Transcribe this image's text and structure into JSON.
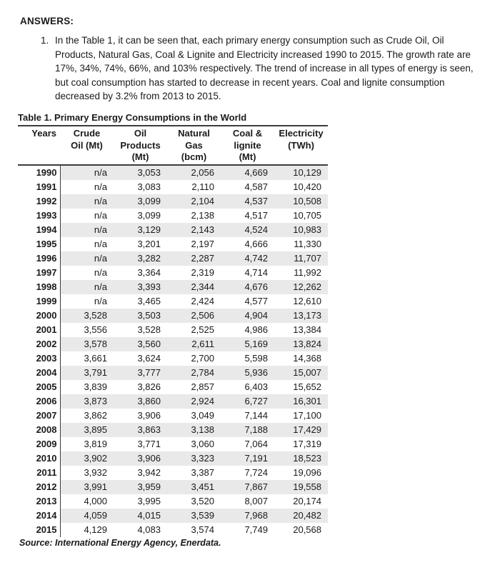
{
  "document": {
    "answers_heading": "ANSWERS:",
    "answer": {
      "number": "1.",
      "lines": [
        "In the Table 1, it can be seen that, each primary energy consumption such as Crude Oil, Oil",
        "Products, Natural Gas, Coal & Lignite and Electricity increased 1990 to 2015. The growth rate are",
        "17%, 34%, 74%, 66%, and 103% respectively. The trend of increase in all types of energy is seen,",
        "but coal consumption has started to decrease in recent years. Coal and lignite consumption",
        "decreased by 3.2% from 2013 to 2015."
      ]
    },
    "table_title": "Table 1. Primary Energy Consumptions in the World",
    "source_note": "Source: International Energy Agency, Enerdata."
  },
  "table": {
    "columns": [
      {
        "id": "years",
        "header_lines": [
          "Years"
        ]
      },
      {
        "id": "crude-oil",
        "header_lines": [
          "Crude",
          "Oil (Mt)"
        ]
      },
      {
        "id": "oil-products",
        "header_lines": [
          "Oil",
          "Products",
          "(Mt)"
        ]
      },
      {
        "id": "natural-gas",
        "header_lines": [
          "Natural",
          "Gas",
          "(bcm)"
        ]
      },
      {
        "id": "coal-lignite",
        "header_lines": [
          "Coal &",
          "lignite",
          "(Mt)"
        ]
      },
      {
        "id": "electricity",
        "header_lines": [
          "Electricity",
          "(TWh)"
        ]
      }
    ],
    "rows": [
      {
        "year": "1990",
        "values": [
          "n/a",
          "3,053",
          "2,056",
          "4,669",
          "10,129"
        ]
      },
      {
        "year": "1991",
        "values": [
          "n/a",
          "3,083",
          "2,110",
          "4,587",
          "10,420"
        ]
      },
      {
        "year": "1992",
        "values": [
          "n/a",
          "3,099",
          "2,104",
          "4,537",
          "10,508"
        ]
      },
      {
        "year": "1993",
        "values": [
          "n/a",
          "3,099",
          "2,138",
          "4,517",
          "10,705"
        ]
      },
      {
        "year": "1994",
        "values": [
          "n/a",
          "3,129",
          "2,143",
          "4,524",
          "10,983"
        ]
      },
      {
        "year": "1995",
        "values": [
          "n/a",
          "3,201",
          "2,197",
          "4,666",
          "11,330"
        ]
      },
      {
        "year": "1996",
        "values": [
          "n/a",
          "3,282",
          "2,287",
          "4,742",
          "11,707"
        ]
      },
      {
        "year": "1997",
        "values": [
          "n/a",
          "3,364",
          "2,319",
          "4,714",
          "11,992"
        ]
      },
      {
        "year": "1998",
        "values": [
          "n/a",
          "3,393",
          "2,344",
          "4,676",
          "12,262"
        ]
      },
      {
        "year": "1999",
        "values": [
          "n/a",
          "3,465",
          "2,424",
          "4,577",
          "12,610"
        ]
      },
      {
        "year": "2000",
        "values": [
          "3,528",
          "3,503",
          "2,506",
          "4,904",
          "13,173"
        ]
      },
      {
        "year": "2001",
        "values": [
          "3,556",
          "3,528",
          "2,525",
          "4,986",
          "13,384"
        ]
      },
      {
        "year": "2002",
        "values": [
          "3,578",
          "3,560",
          "2,611",
          "5,169",
          "13,824"
        ]
      },
      {
        "year": "2003",
        "values": [
          "3,661",
          "3,624",
          "2,700",
          "5,598",
          "14,368"
        ]
      },
      {
        "year": "2004",
        "values": [
          "3,791",
          "3,777",
          "2,784",
          "5,936",
          "15,007"
        ]
      },
      {
        "year": "2005",
        "values": [
          "3,839",
          "3,826",
          "2,857",
          "6,403",
          "15,652"
        ]
      },
      {
        "year": "2006",
        "values": [
          "3,873",
          "3,860",
          "2,924",
          "6,727",
          "16,301"
        ]
      },
      {
        "year": "2007",
        "values": [
          "3,862",
          "3,906",
          "3,049",
          "7,144",
          "17,100"
        ]
      },
      {
        "year": "2008",
        "values": [
          "3,895",
          "3,863",
          "3,138",
          "7,188",
          "17,429"
        ]
      },
      {
        "year": "2009",
        "values": [
          "3,819",
          "3,771",
          "3,060",
          "7,064",
          "17,319"
        ]
      },
      {
        "year": "2010",
        "values": [
          "3,902",
          "3,906",
          "3,323",
          "7,191",
          "18,523"
        ]
      },
      {
        "year": "2011",
        "values": [
          "3,932",
          "3,942",
          "3,387",
          "7,724",
          "19,096"
        ]
      },
      {
        "year": "2012",
        "values": [
          "3,991",
          "3,959",
          "3,451",
          "7,867",
          "19,558"
        ]
      },
      {
        "year": "2013",
        "values": [
          "4,000",
          "3,995",
          "3,520",
          "8,007",
          "20,174"
        ]
      },
      {
        "year": "2014",
        "values": [
          "4,059",
          "4,015",
          "3,539",
          "7,968",
          "20,482"
        ]
      },
      {
        "year": "2015",
        "values": [
          "4,129",
          "4,083",
          "3,574",
          "7,749",
          "20,568"
        ]
      }
    ]
  },
  "colors": {
    "row_stripe": "#e9e9e9",
    "rule": "#3c3c3c",
    "text": "#1a1a1a"
  }
}
